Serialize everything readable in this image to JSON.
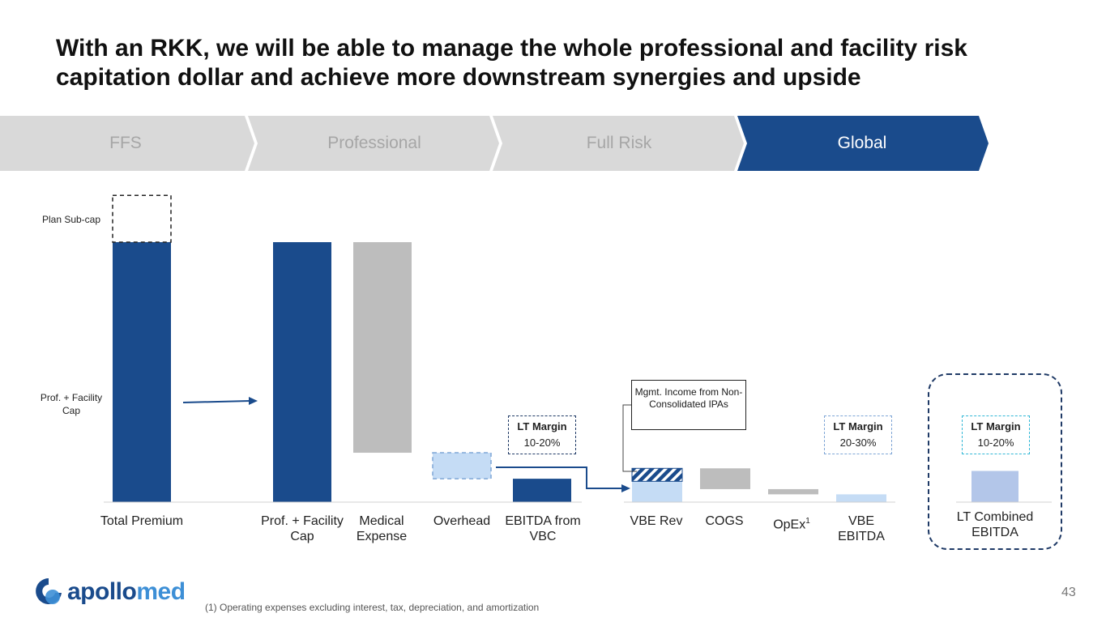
{
  "title": "With an RKK, we will be able to manage the whole professional and facility risk capitation dollar and achieve more downstream synergies and upside",
  "chevrons": [
    {
      "label": "FFS",
      "active": false
    },
    {
      "label": "Professional",
      "active": false
    },
    {
      "label": "Full Risk",
      "active": false
    },
    {
      "label": "Global",
      "active": true
    }
  ],
  "colors": {
    "navy": "#1a4b8c",
    "gray": "#bdbdbd",
    "light_blue": "#c5dcf5",
    "periwinkle": "#b3c6e9",
    "chevron_inactive": "#d9d9d9",
    "chevron_inactive_text": "#a6a6a6"
  },
  "labels": {
    "plan_subcap": "Plan Sub-cap",
    "prof_facility_side": "Prof. + Facility Cap",
    "mgmt_income": "Mgmt. Income from Non-Consolidated IPAs"
  },
  "margins": [
    {
      "heading": "LT Margin",
      "value": "10-20%"
    },
    {
      "heading": "LT Margin",
      "value": "20-30%"
    },
    {
      "heading": "LT Margin",
      "value": "10-20%"
    }
  ],
  "chart_data": {
    "type": "bar",
    "categories": [
      "Total Premium",
      "Prof. + Facility Cap",
      "Medical Expense",
      "Overhead",
      "EBITDA from VBC",
      "VBE Rev",
      "COGS",
      "OpEx",
      "VBE EBITDA",
      "LT Combined EBITDA"
    ],
    "footnote_marks": {
      "OpEx": "1"
    },
    "bars": [
      {
        "category": "Total Premium",
        "low": 0,
        "high": 100,
        "style": "solid",
        "color": "navy",
        "dashed_extension_high": 118
      },
      {
        "category": "Prof. + Facility Cap",
        "low": 0,
        "high": 100,
        "style": "solid",
        "color": "navy"
      },
      {
        "category": "Medical Expense",
        "low": 19,
        "high": 100,
        "style": "solid",
        "color": "gray"
      },
      {
        "category": "Overhead",
        "low": 9,
        "high": 19,
        "style": "dashed",
        "color": "light_blue"
      },
      {
        "category": "EBITDA from VBC",
        "low": 0,
        "high": 9,
        "style": "solid",
        "color": "navy"
      },
      {
        "category": "VBE Rev",
        "low": 0,
        "high": 8,
        "style": "solid",
        "color": "light_blue",
        "hatched_low": 8,
        "hatched_high": 13
      },
      {
        "category": "COGS",
        "low": 5,
        "high": 13,
        "style": "solid",
        "color": "gray"
      },
      {
        "category": "OpEx",
        "low": 3,
        "high": 5,
        "style": "solid",
        "color": "gray"
      },
      {
        "category": "VBE EBITDA",
        "low": 0,
        "high": 3,
        "style": "solid",
        "color": "light_blue"
      },
      {
        "category": "LT Combined EBITDA",
        "low": 0,
        "high": 12,
        "style": "solid",
        "color": "periwinkle"
      }
    ]
  },
  "footnote": "(1) Operating expenses excluding interest, tax, depreciation, and amortization",
  "page_number": "43",
  "logo": {
    "part1": "apollo",
    "part2": "med",
    "color1": "#1a4b8c",
    "color2": "#3d8fd6"
  }
}
